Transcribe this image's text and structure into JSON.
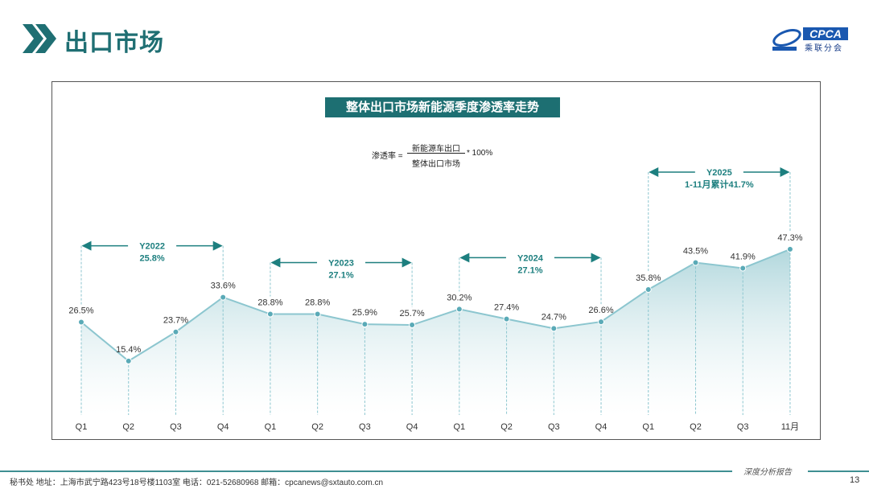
{
  "header": {
    "title": "出口市场",
    "logo_text": "CPCA",
    "logo_sub": "乘联分会"
  },
  "chart_data": {
    "type": "area",
    "title": "整体出口市场新能源季度渗透率走势",
    "formula": {
      "lhs": "渗透率 =",
      "numerator": "新能源车出口",
      "denominator": "整体出口市场",
      "rhs": "* 100%"
    },
    "categories": [
      "Q1",
      "Q2",
      "Q3",
      "Q4",
      "Q1",
      "Q2",
      "Q3",
      "Q4",
      "Q1",
      "Q2",
      "Q3",
      "Q4",
      "Q1",
      "Q2",
      "Q3",
      "11月"
    ],
    "values": [
      26.5,
      15.4,
      23.7,
      33.6,
      28.8,
      28.8,
      25.9,
      25.7,
      30.2,
      27.4,
      24.7,
      26.6,
      35.8,
      43.5,
      41.9,
      47.3
    ],
    "value_labels": [
      "26.5%",
      "15.4%",
      "23.7%",
      "33.6%",
      "28.8%",
      "28.8%",
      "25.9%",
      "25.7%",
      "30.2%",
      "27.4%",
      "24.7%",
      "26.6%",
      "35.8%",
      "43.5%",
      "41.9%",
      "47.3%"
    ],
    "ylim": [
      0,
      50
    ],
    "grid": false,
    "annotations": [
      {
        "year": "Y2022",
        "value": "25.8%",
        "from": 0,
        "to": 3
      },
      {
        "year": "Y2023",
        "value": "27.1%",
        "from": 4,
        "to": 7
      },
      {
        "year": "Y2024",
        "value": "27.1%",
        "from": 8,
        "to": 11
      },
      {
        "year": "Y2025",
        "value": "1-11月累计41.7%",
        "from": 12,
        "to": 15
      }
    ],
    "colors": {
      "line": "#8cc6cf",
      "point": "#5aaab7",
      "annot": "#1d7f7f",
      "title_bg": "#1d6f72"
    }
  },
  "footer": {
    "tag": "深度分析报告",
    "address": "秘书处   地址：上海市武宁路423号18号楼1103室  电话：021-52680968   邮箱：cpcanews@sxtauto.com.cn",
    "page": "13"
  }
}
